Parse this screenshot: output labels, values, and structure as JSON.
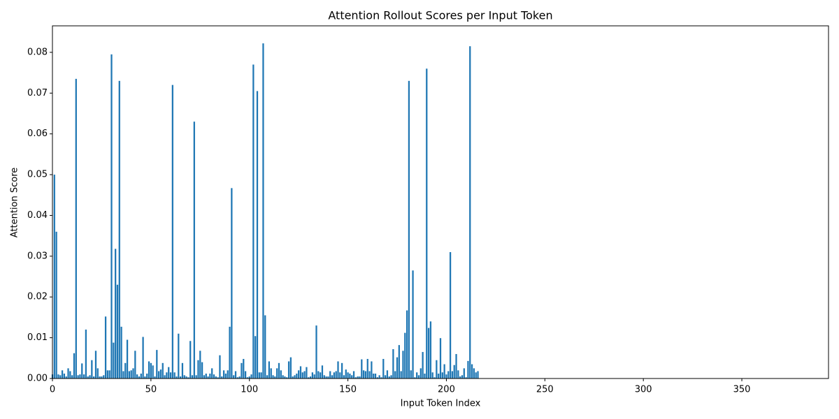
{
  "chart_data": {
    "type": "bar",
    "title": "Attention Rollout Scores per Input Token",
    "xlabel": "Input Token Index",
    "ylabel": "Attention Score",
    "color": "#1f77b4",
    "x": [
      0,
      1,
      2,
      3,
      4,
      5,
      6,
      7,
      8,
      9,
      10,
      11,
      12,
      13,
      14,
      15,
      16,
      17,
      18,
      19,
      20,
      21,
      22,
      23,
      24,
      25,
      26,
      27,
      28,
      29,
      30,
      31,
      32,
      33,
      34,
      35,
      36,
      37,
      38,
      39,
      40,
      41,
      42,
      43,
      44,
      45,
      46,
      47,
      48,
      49,
      50,
      51,
      52,
      53,
      54,
      55,
      56,
      57,
      58,
      59,
      60,
      61,
      62,
      63,
      64,
      65,
      66,
      67,
      68,
      69,
      70,
      71,
      72,
      73,
      74,
      75,
      76,
      77,
      78,
      79,
      80,
      81,
      82,
      83,
      84,
      85,
      86,
      87,
      88,
      89,
      90,
      91,
      92,
      93,
      94,
      95,
      96,
      97,
      98,
      99,
      100,
      101,
      102,
      103,
      104,
      105,
      106,
      107,
      108,
      109,
      110,
      111,
      112,
      113,
      114,
      115,
      116,
      117,
      118,
      119,
      120,
      121,
      122,
      123,
      124,
      125,
      126,
      127,
      128,
      129,
      130,
      131,
      132,
      133,
      134,
      135,
      136,
      137,
      138,
      139,
      140,
      141,
      142,
      143,
      144,
      145,
      146,
      147,
      148,
      149,
      150,
      151,
      152,
      153,
      154,
      155,
      156,
      157,
      158,
      159,
      160,
      161,
      162,
      163,
      164,
      165,
      166,
      167,
      168,
      169,
      170,
      171,
      172,
      173,
      174,
      175,
      176,
      177,
      178,
      179,
      180,
      181,
      182,
      183,
      184,
      185,
      186,
      187,
      188,
      189,
      190,
      191,
      192,
      193,
      194,
      195,
      196,
      197,
      198,
      199,
      200,
      201,
      202,
      203,
      204,
      205,
      206,
      207,
      208,
      209,
      210,
      211,
      212,
      213,
      214,
      215,
      216
    ],
    "values": [
      0.001,
      0.05,
      0.036,
      0.001,
      0.0008,
      0.002,
      0.0012,
      0.0005,
      0.0025,
      0.0018,
      0.0008,
      0.0062,
      0.0735,
      0.0008,
      0.001,
      0.0037,
      0.001,
      0.012,
      0.0005,
      0.0008,
      0.0045,
      0.0005,
      0.0068,
      0.0025,
      0.0005,
      0.0005,
      0.0008,
      0.0152,
      0.002,
      0.002,
      0.0795,
      0.0088,
      0.0318,
      0.023,
      0.073,
      0.0127,
      0.0018,
      0.0038,
      0.0095,
      0.0018,
      0.002,
      0.0025,
      0.0068,
      0.001,
      0.0005,
      0.0012,
      0.0102,
      0.0005,
      0.0012,
      0.0042,
      0.0038,
      0.0032,
      0.0005,
      0.007,
      0.0018,
      0.0022,
      0.0038,
      0.0008,
      0.0015,
      0.0028,
      0.0015,
      0.072,
      0.0015,
      0.0005,
      0.011,
      0.0005,
      0.0038,
      0.0008,
      0.0005,
      0.0003,
      0.0092,
      0.0008,
      0.063,
      0.0008,
      0.0045,
      0.0068,
      0.004,
      0.0008,
      0.0012,
      0.0005,
      0.0012,
      0.0025,
      0.001,
      0.0005,
      0.0003,
      0.0057,
      0.0005,
      0.002,
      0.0012,
      0.002,
      0.0127,
      0.0467,
      0.0008,
      0.0018,
      0.0003,
      0.0005,
      0.0038,
      0.0048,
      0.0018,
      0.0003,
      0.0005,
      0.001,
      0.077,
      0.0104,
      0.0705,
      0.0015,
      0.0015,
      0.0822,
      0.0155,
      0.0008,
      0.0042,
      0.0025,
      0.0008,
      0.0005,
      0.0025,
      0.0038,
      0.002,
      0.0008,
      0.0005,
      0.0003,
      0.0042,
      0.0052,
      0.0005,
      0.0008,
      0.0012,
      0.002,
      0.003,
      0.0015,
      0.0018,
      0.0028,
      0.0003,
      0.0005,
      0.0015,
      0.001,
      0.013,
      0.0018,
      0.0015,
      0.0032,
      0.0008,
      0.0005,
      0.0005,
      0.0018,
      0.0008,
      0.0015,
      0.0018,
      0.0042,
      0.0015,
      0.0038,
      0.0008,
      0.0022,
      0.0015,
      0.0012,
      0.0008,
      0.0018,
      0.0003,
      0.0005,
      0.0005,
      0.0047,
      0.002,
      0.0018,
      0.0048,
      0.0018,
      0.0042,
      0.0012,
      0.0012,
      0.0003,
      0.0008,
      0.0003,
      0.0048,
      0.0008,
      0.002,
      0.0005,
      0.0008,
      0.0072,
      0.0018,
      0.0052,
      0.0082,
      0.0018,
      0.0068,
      0.0112,
      0.0167,
      0.073,
      0.002,
      0.0265,
      0.0003,
      0.0015,
      0.0008,
      0.0025,
      0.0065,
      0.0012,
      0.076,
      0.0124,
      0.014,
      0.0015,
      0.0003,
      0.0045,
      0.0012,
      0.0099,
      0.0015,
      0.0035,
      0.001,
      0.0018,
      0.031,
      0.0018,
      0.0033,
      0.006,
      0.002,
      0.0005,
      0.0008,
      0.0025,
      0.0003,
      0.0043,
      0.0815,
      0.0035,
      0.0025,
      0.0015,
      0.0018
    ],
    "xlim": [
      0,
      394
    ],
    "xticks": [
      0,
      50,
      100,
      150,
      200,
      250,
      300,
      350
    ],
    "ylim": [
      0,
      0.0865
    ],
    "yticks": [
      {
        "value": 0,
        "label": "0.00"
      },
      {
        "value": 0.01,
        "label": "0.01"
      },
      {
        "value": 0.02,
        "label": "0.02"
      },
      {
        "value": 0.03,
        "label": "0.03"
      },
      {
        "value": 0.04,
        "label": "0.04"
      },
      {
        "value": 0.05,
        "label": "0.05"
      },
      {
        "value": 0.06,
        "label": "0.06"
      },
      {
        "value": 0.07,
        "label": "0.07"
      },
      {
        "value": 0.08,
        "label": "0.08"
      }
    ]
  }
}
